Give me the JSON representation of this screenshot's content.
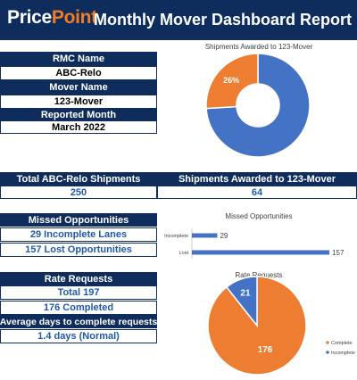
{
  "header": {
    "logo_part1": "Price",
    "logo_part2": "Point",
    "title": "Monthly Mover Dashboard Report"
  },
  "info": {
    "rmc_label": "RMC Name",
    "rmc_value": "ABC-Relo",
    "mover_label": "Mover Name",
    "mover_value": "123-Mover",
    "month_label": "Reported Month",
    "month_value": "March 2022"
  },
  "totals": {
    "total_label": "Total ABC-Relo Shipments",
    "total_value": "250",
    "awarded_label": "Shipments Awarded to 123-Mover",
    "awarded_value": "64"
  },
  "missed": {
    "label": "Missed Opportunities",
    "incomplete_text": "29 Incomplete Lanes",
    "lost_text": "157 Lost Opportunities"
  },
  "rates": {
    "label": "Rate Requests",
    "total_text": "Total 197",
    "completed_text": "176 Completed",
    "avg_label": "Average days to complete requests",
    "avg_value": "1.4 days (Normal)"
  },
  "colors": {
    "navy": "#0f2d5c",
    "accent_blue": "#4472c4",
    "accent_orange": "#ed7d31"
  },
  "chart_data": [
    {
      "type": "pie",
      "title": "Shipments Awarded to 123-Mover",
      "donut": true,
      "slices": [
        {
          "value": 74,
          "color": "#4472c4",
          "label": ""
        },
        {
          "value": 26,
          "color": "#ed7d31",
          "label": "26%"
        }
      ]
    },
    {
      "type": "bar",
      "orientation": "horizontal",
      "title": "Missed Opportunities",
      "categories": [
        "Incomplete",
        "Lost"
      ],
      "values": [
        29,
        157
      ],
      "xlim": [
        0,
        160
      ],
      "color": "#4472c4"
    },
    {
      "type": "pie",
      "title": "Rate Requests",
      "slices": [
        {
          "value": 176,
          "name": "Complete",
          "color": "#ed7d31",
          "label": "176"
        },
        {
          "value": 21,
          "name": "Incomplete",
          "color": "#4472c4",
          "label": "21"
        }
      ],
      "legend": "right"
    }
  ]
}
